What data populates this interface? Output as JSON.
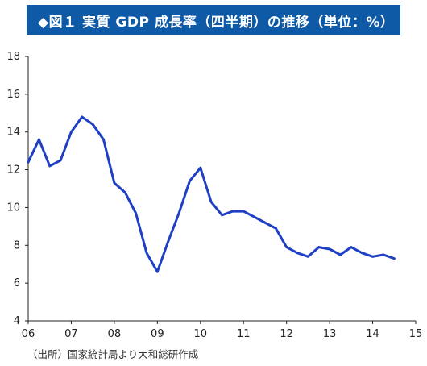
{
  "header": {
    "title": "◆図１ 実質 GDP 成長率（四半期）の推移（単位：%）"
  },
  "source_note": "（出所）国家統計局より大和総研作成",
  "colors": {
    "title_bg": "#0e5aa7",
    "line": "#1f3fc4",
    "axis": "#222222"
  },
  "chart_data": {
    "type": "line",
    "title": "◆図１ 実質 GDP 成長率（四半期）の推移（単位：%）",
    "xlabel": "",
    "ylabel": "",
    "x_tick_labels": [
      "06",
      "07",
      "08",
      "09",
      "10",
      "11",
      "12",
      "13",
      "14",
      "15"
    ],
    "xlim": [
      2006,
      2015
    ],
    "ylim": [
      4,
      18
    ],
    "y_ticks": [
      4,
      6,
      8,
      10,
      12,
      14,
      16,
      18
    ],
    "grid": false,
    "series": [
      {
        "x": [
          2006.0,
          2006.25,
          2006.5,
          2006.75,
          2007.0,
          2007.25,
          2007.5,
          2007.75,
          2008.0,
          2008.25,
          2008.5,
          2008.75,
          2009.0,
          2009.25,
          2009.5,
          2009.75,
          2010.0,
          2010.25,
          2010.5,
          2010.75,
          2011.0,
          2011.25,
          2011.5,
          2011.75,
          2012.0,
          2012.25,
          2012.5,
          2012.75,
          2013.0,
          2013.25,
          2013.5,
          2013.75,
          2014.0,
          2014.25,
          2014.5
        ],
        "values": [
          12.4,
          13.6,
          12.2,
          12.5,
          14.0,
          14.8,
          14.4,
          13.6,
          11.3,
          10.8,
          9.7,
          7.6,
          6.6,
          8.2,
          9.7,
          11.4,
          12.1,
          10.3,
          9.6,
          9.8,
          9.8,
          9.5,
          9.2,
          8.9,
          7.9,
          7.6,
          7.4,
          7.9,
          7.8,
          7.5,
          7.9,
          7.6,
          7.4,
          7.5,
          7.3
        ]
      }
    ]
  }
}
